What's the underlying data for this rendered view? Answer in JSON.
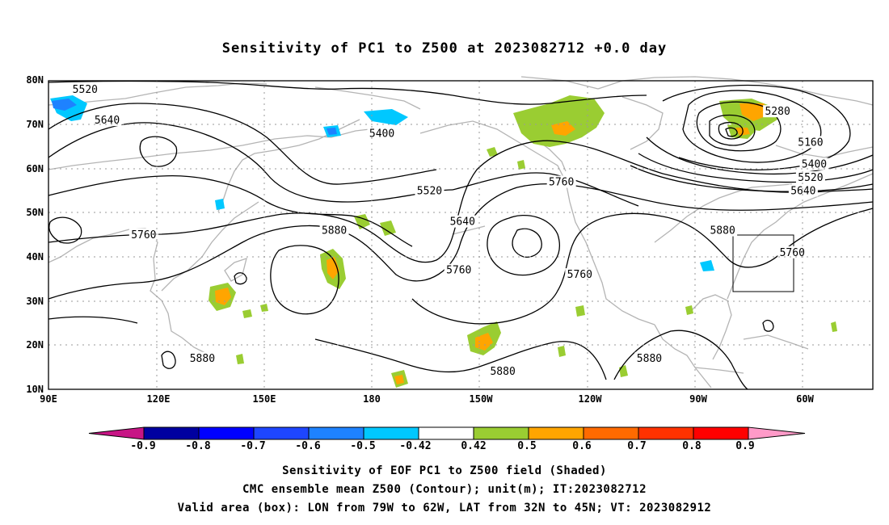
{
  "title": "Sensitivity of PC1 to Z500 at 2023082712 +0.0 day",
  "map": {
    "lat_labels": [
      "80N",
      "70N",
      "60N",
      "50N",
      "40N",
      "30N",
      "20N",
      "10N"
    ],
    "lon_labels": [
      "90E",
      "120E",
      "150E",
      "180",
      "150W",
      "120W",
      "90W",
      "60W"
    ],
    "contour_labels": [
      {
        "text": "5520",
        "lon": 100,
        "lat": 78
      },
      {
        "text": "5640",
        "lon": 106,
        "lat": 71
      },
      {
        "text": "5400",
        "lon": 181,
        "lat": 68
      },
      {
        "text": "5520",
        "lon": 194,
        "lat": 55
      },
      {
        "text": "5640",
        "lon": 203,
        "lat": 48
      },
      {
        "text": "5760",
        "lon": 116,
        "lat": 45
      },
      {
        "text": "5880",
        "lon": 168,
        "lat": 46
      },
      {
        "text": "5760",
        "lon": 202,
        "lat": 37
      },
      {
        "text": "5760",
        "lon": 230,
        "lat": 57
      },
      {
        "text": "5760",
        "lon": 235,
        "lat": 36
      },
      {
        "text": "5880",
        "lon": 274,
        "lat": 46
      },
      {
        "text": "5760",
        "lon": 293,
        "lat": 41
      },
      {
        "text": "5280",
        "lon": 289,
        "lat": 73
      },
      {
        "text": "5160",
        "lon": 298,
        "lat": 66
      },
      {
        "text": "5400",
        "lon": 299,
        "lat": 61
      },
      {
        "text": "5520",
        "lon": 298,
        "lat": 58
      },
      {
        "text": "5640",
        "lon": 296,
        "lat": 55
      },
      {
        "text": "5880",
        "lon": 132,
        "lat": 17
      },
      {
        "text": "5880",
        "lon": 214,
        "lat": 14
      },
      {
        "text": "5880",
        "lon": 254,
        "lat": 17
      }
    ],
    "valid_box": {
      "lon_min": -79,
      "lon_max": -62,
      "lat_min": 32,
      "lat_max": 45
    }
  },
  "colorbar": {
    "colors": [
      "#c71585",
      "#0000a0",
      "#0000ff",
      "#1e46ff",
      "#1e82ff",
      "#00c8ff",
      "#ffffff",
      "#9acd32",
      "#ffa500",
      "#ff6a00",
      "#ff3200",
      "#ff0000",
      "#ff9ac8"
    ],
    "ticks": [
      "-0.9",
      "-0.8",
      "-0.7",
      "-0.6",
      "-0.5",
      "-0.42",
      "0.42",
      "0.5",
      "0.6",
      "0.7",
      "0.8",
      "0.9"
    ]
  },
  "captions": [
    "Sensitivity of EOF PC1 to Z500 field (Shaded)",
    "CMC ensemble mean Z500 (Contour); unit(m); IT:2023082712",
    "Valid area (box): LON from 79W to 62W, LAT from 32N to 45N; VT: 2023082912"
  ]
}
